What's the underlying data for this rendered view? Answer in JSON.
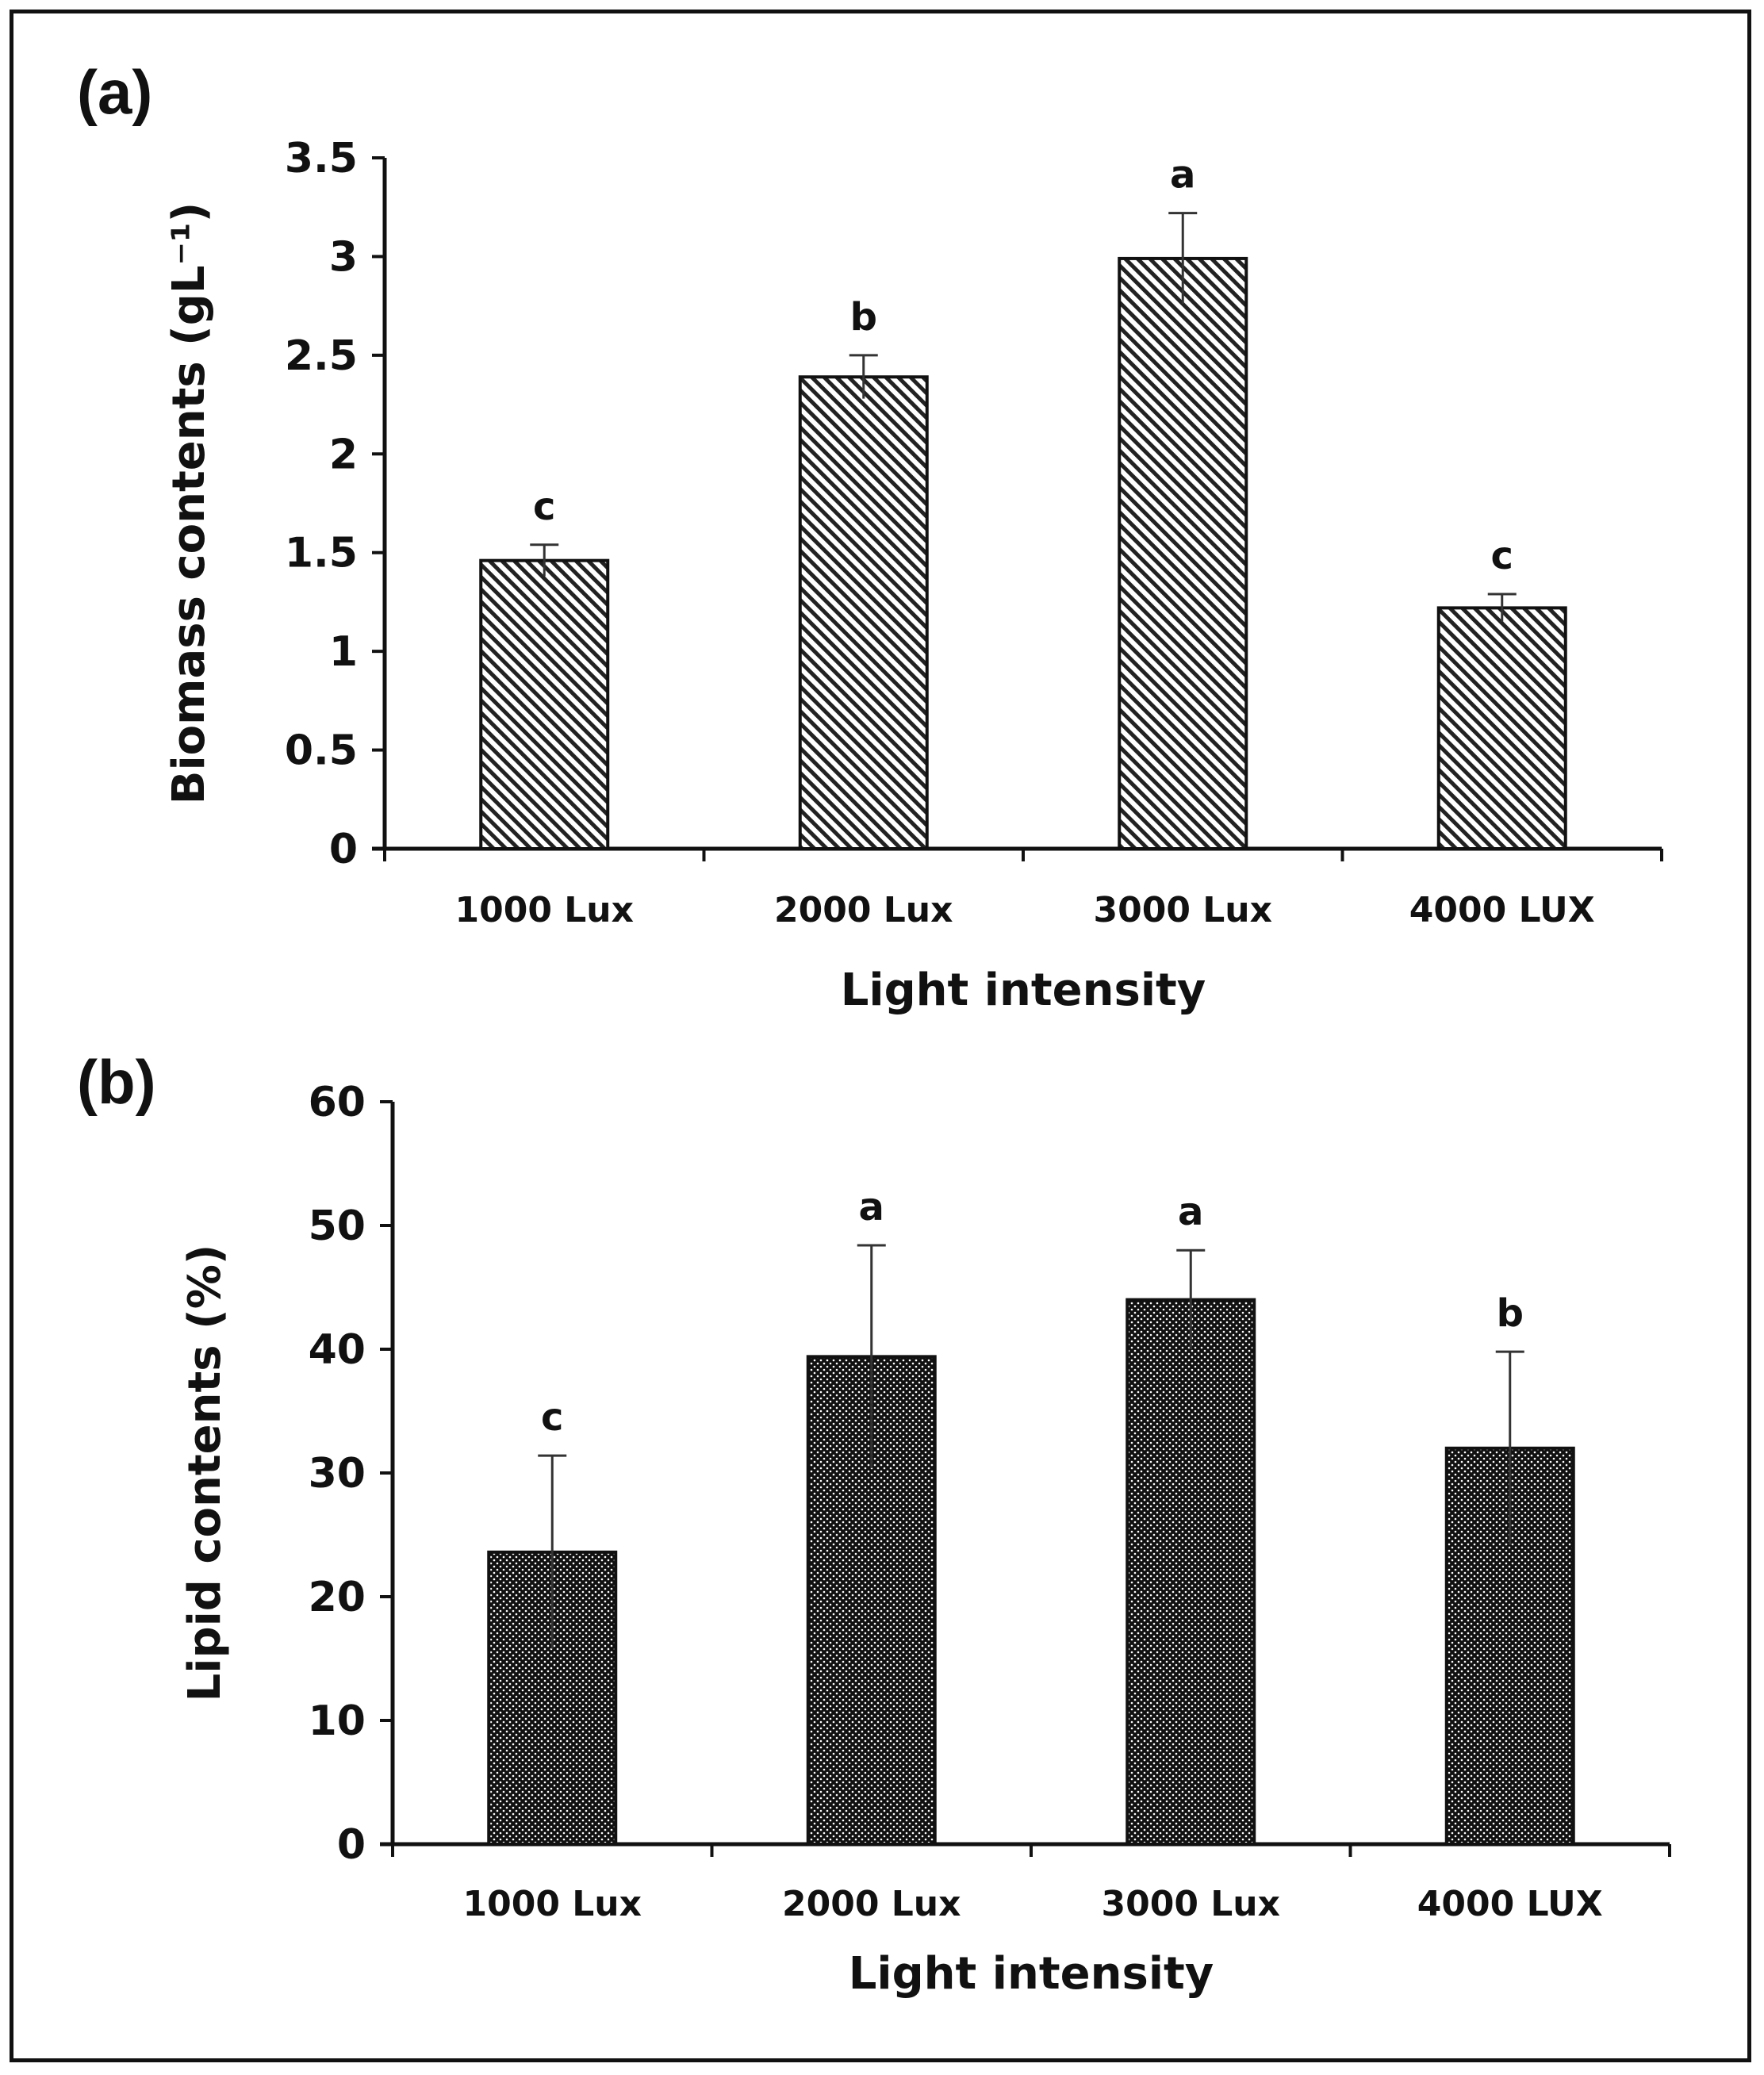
{
  "chart_data": [
    {
      "panel_label": "(a)",
      "type": "bar",
      "categories": [
        "1000 Lux",
        "2000 Lux",
        "3000 Lux",
        "4000 LUX"
      ],
      "values": [
        1.46,
        2.39,
        2.99,
        1.22
      ],
      "errors": [
        0.08,
        0.11,
        0.23,
        0.07
      ],
      "significance": [
        "c",
        "b",
        "a",
        "c"
      ],
      "xlabel": "Light intensity",
      "ylabel": "Biomass contents (gL⁻¹)",
      "ylim": [
        0,
        3.5
      ],
      "yticks": [
        0,
        0.5,
        1,
        1.5,
        2,
        2.5,
        3,
        3.5
      ],
      "ytick_labels": [
        "0",
        "0.5",
        "1",
        "1.5",
        "2",
        "2.5",
        "3",
        "3.5"
      ],
      "pattern": "diagonal-hatch",
      "grid": false
    },
    {
      "panel_label": "(b)",
      "type": "bar",
      "categories": [
        "1000 Lux",
        "2000 Lux",
        "3000 Lux",
        "4000 LUX"
      ],
      "values": [
        23.6,
        39.4,
        44.0,
        32.0
      ],
      "errors": [
        7.8,
        9.0,
        4.0,
        7.8
      ],
      "significance": [
        "c",
        "a",
        "a",
        "b"
      ],
      "xlabel": "Light intensity",
      "ylabel": "Lipid contents (%)",
      "ylim": [
        0,
        60
      ],
      "yticks": [
        0,
        10,
        20,
        30,
        40,
        50,
        60
      ],
      "ytick_labels": [
        "0",
        "10",
        "20",
        "30",
        "40",
        "50",
        "60"
      ],
      "pattern": "dotted",
      "grid": false
    }
  ]
}
